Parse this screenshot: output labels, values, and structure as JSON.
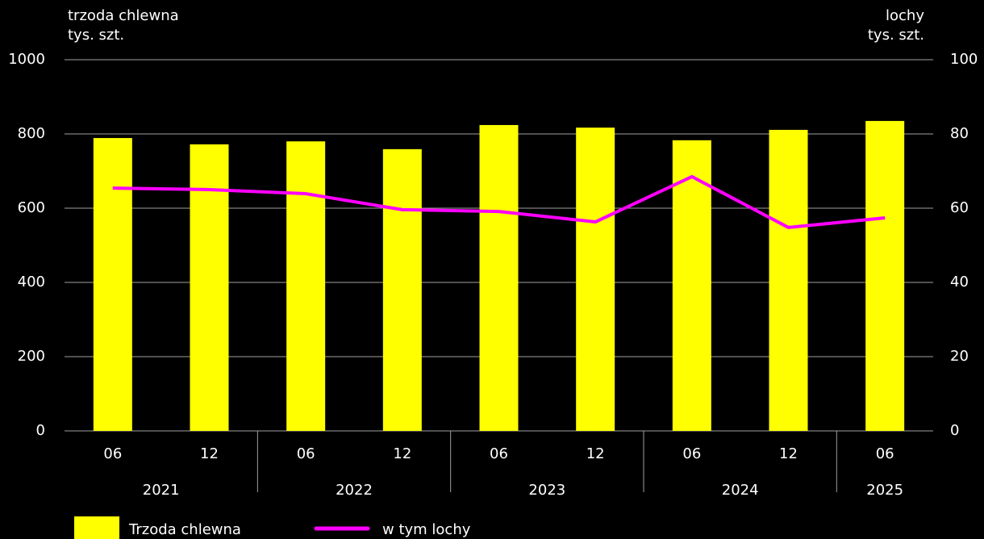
{
  "chart_data": {
    "type": "bar_line",
    "y_label": [
      "trzoda chlewna",
      "tys. szt."
    ],
    "y2_label": [
      "lochy",
      "tys. szt."
    ],
    "categories": [
      "06",
      "12",
      "06",
      "12",
      "06",
      "12",
      "06",
      "12",
      "06"
    ],
    "category_groups": [
      "2021",
      "2021",
      "2022",
      "2022",
      "2023",
      "2023",
      "2024",
      "2024",
      "2025"
    ],
    "series": [
      {
        "name": "Trzoda chlewna",
        "type": "bar",
        "color": "#ffff00",
        "values": [
          789,
          772,
          780,
          759,
          824,
          817,
          783,
          811,
          835
        ]
      },
      {
        "name": "w tym lochy",
        "type": "line",
        "axis": "y2",
        "color": "#ff00ff",
        "values": [
          65.4,
          65.0,
          63.9,
          59.6,
          59.1,
          56.3,
          68.5,
          54.8,
          57.4
        ]
      }
    ],
    "ylim": [
      0,
      1000
    ],
    "yticks": [
      0,
      200,
      400,
      600,
      800,
      1000
    ],
    "y2lim": [
      0,
      100
    ],
    "y2ticks": [
      0,
      20,
      40,
      60,
      80,
      100
    ],
    "grid": true,
    "legend": "bottom"
  }
}
